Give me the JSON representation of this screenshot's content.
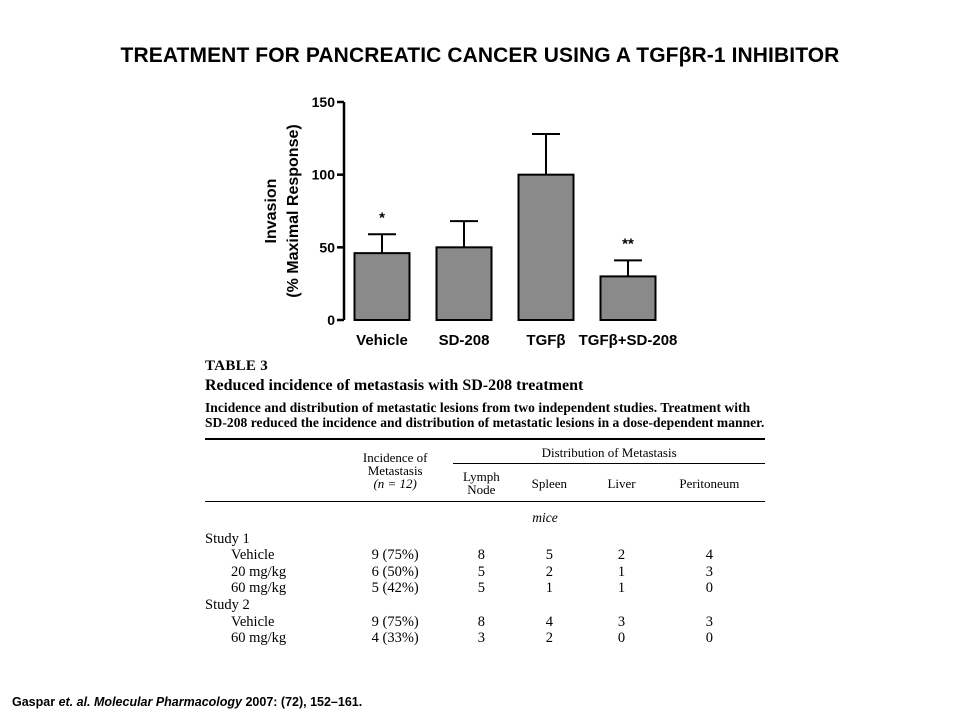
{
  "slide": {
    "title": "TREATMENT FOR PANCREATIC CANCER USING A TGFβR-1 INHIBITOR"
  },
  "chart_data": {
    "type": "bar",
    "categories": [
      "Vehicle",
      "SD-208",
      "TGFβ",
      "TGFβ+SD-208"
    ],
    "values": [
      46,
      50,
      100,
      30
    ],
    "error_bars": [
      13,
      18,
      28,
      11
    ],
    "annotations": [
      "*",
      "",
      "",
      "**"
    ],
    "title": "",
    "xlabel": "",
    "ylabel": "Invasion",
    "ylabel_line2": "(% Maximal Response)",
    "ylim": [
      0,
      150
    ],
    "yticks": [
      0,
      50,
      100,
      150
    ],
    "bar_color": "#8a8a8a",
    "grid": false
  },
  "table": {
    "label": "TABLE 3",
    "title": "Reduced incidence of metastasis with SD-208 treatment",
    "caption": "Incidence and distribution of metastatic lesions from two independent studies. Treatment with SD-208 reduced the incidence and distribution of metastatic lesions in a dose-dependent manner.",
    "headers": {
      "incidence_line1": "Incidence of",
      "incidence_line2": "Metastasis",
      "incidence_line3": "(n = 12)",
      "distribution": "Distribution of Metastasis",
      "lymph_line1": "Lymph",
      "lymph_line2": "Node",
      "spleen": "Spleen",
      "liver": "Liver",
      "peritoneum": "Peritoneum"
    },
    "units": "mice",
    "rows": [
      {
        "label": "Study 1",
        "incidence": "",
        "lymph": "",
        "spleen": "",
        "liver": "",
        "peritoneum": ""
      },
      {
        "label": "Vehicle",
        "incidence": "9 (75%)",
        "lymph": "8",
        "spleen": "5",
        "liver": "2",
        "peritoneum": "4"
      },
      {
        "label": "20 mg/kg",
        "incidence": "6 (50%)",
        "lymph": "5",
        "spleen": "2",
        "liver": "1",
        "peritoneum": "3"
      },
      {
        "label": "60 mg/kg",
        "incidence": "5 (42%)",
        "lymph": "5",
        "spleen": "1",
        "liver": "1",
        "peritoneum": "0"
      },
      {
        "label": "Study 2",
        "incidence": "",
        "lymph": "",
        "spleen": "",
        "liver": "",
        "peritoneum": ""
      },
      {
        "label": "Vehicle",
        "incidence": "9 (75%)",
        "lymph": "8",
        "spleen": "4",
        "liver": "3",
        "peritoneum": "3"
      },
      {
        "label": "60 mg/kg",
        "incidence": "4 (33%)",
        "lymph": "3",
        "spleen": "2",
        "liver": "0",
        "peritoneum": "0"
      }
    ]
  },
  "citation": {
    "authors": "Gaspar ",
    "etal": "et. al.",
    "journal": "Molecular Pharmacology",
    "details": " 2007: (72), 152–161."
  }
}
